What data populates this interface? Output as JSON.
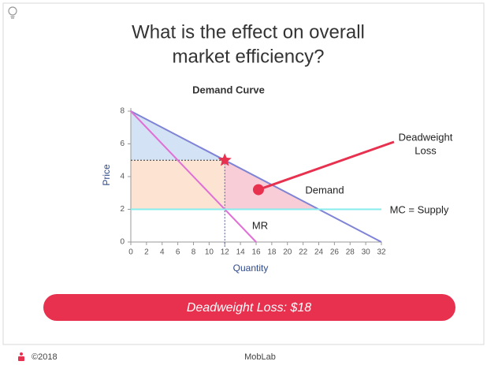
{
  "slide": {
    "title_lines": [
      "What is the effect on overall",
      "market efficiency?"
    ],
    "result": "Deadweight Loss: $18",
    "footer_year": "©2018",
    "footer_brand": "MobLab"
  },
  "chart_data": {
    "type": "line",
    "title": "Demand Curve",
    "x_label": "Quantity",
    "y_label": "Price",
    "xlim": [
      0,
      32
    ],
    "ylim": [
      0,
      8
    ],
    "xticks": [
      0,
      2,
      4,
      6,
      8,
      10,
      12,
      14,
      16,
      18,
      20,
      22,
      24,
      26,
      28,
      30,
      32
    ],
    "yticks": [
      0,
      2,
      4,
      6,
      8
    ],
    "series": [
      {
        "name": "Demand",
        "color": "#7f84d6",
        "x": [
          0,
          32
        ],
        "values": [
          8,
          0
        ]
      },
      {
        "name": "MR",
        "color": "#e06fd6",
        "x": [
          0,
          16
        ],
        "values": [
          8,
          0
        ]
      },
      {
        "name": "MC = Supply",
        "color": "#86ecec",
        "x": [
          0,
          32
        ],
        "values": [
          2,
          2
        ]
      }
    ],
    "monopoly_point": {
      "x": 12,
      "y": 5,
      "color": "#e8314f"
    },
    "annotation": {
      "lines": [
        "Deadweight",
        "Loss"
      ],
      "x": 16.3,
      "y": 3.2,
      "color": "#e8314f"
    }
  }
}
